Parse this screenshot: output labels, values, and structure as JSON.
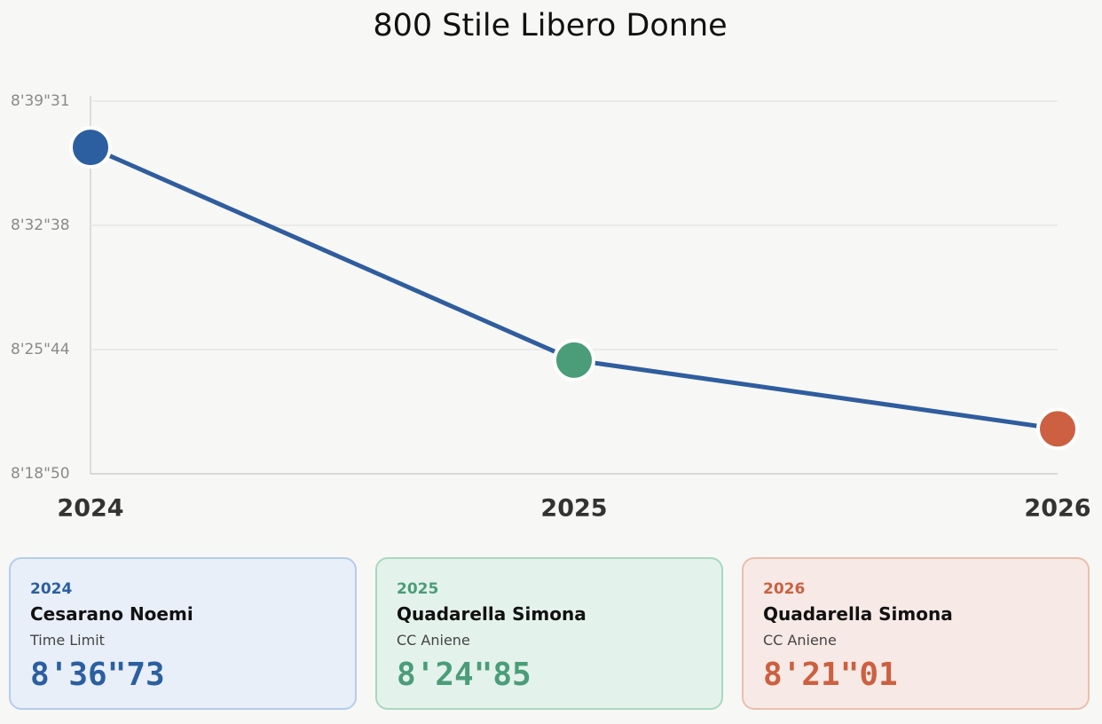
{
  "chart_data": {
    "type": "line",
    "title": "800 Stile Libero Donne",
    "categories": [
      "2024",
      "2025",
      "2026"
    ],
    "values": [
      516.73,
      504.85,
      501.01
    ],
    "value_labels": [
      "8'36\"73",
      "8'24\"85",
      "8'21\"01"
    ],
    "line_color": "#2f5d9e",
    "colors": [
      "#2c5fa0",
      "#4a9d78",
      "#cc6040"
    ],
    "ylim": [
      498.5,
      519.31
    ],
    "yticks": [
      {
        "value": 498.5,
        "label": "8'18\"50"
      },
      {
        "value": 505.44,
        "label": "8'25\"44"
      },
      {
        "value": 512.38,
        "label": "8'32\"38"
      },
      {
        "value": 519.31,
        "label": "8'39\"31"
      }
    ],
    "grid": true,
    "athletes": [
      "Cesarano Noemi",
      "Quadarella Simona",
      "Quadarella Simona"
    ],
    "clubs": [
      "Time Limit",
      "CC Aniene",
      "CC Aniene"
    ]
  }
}
